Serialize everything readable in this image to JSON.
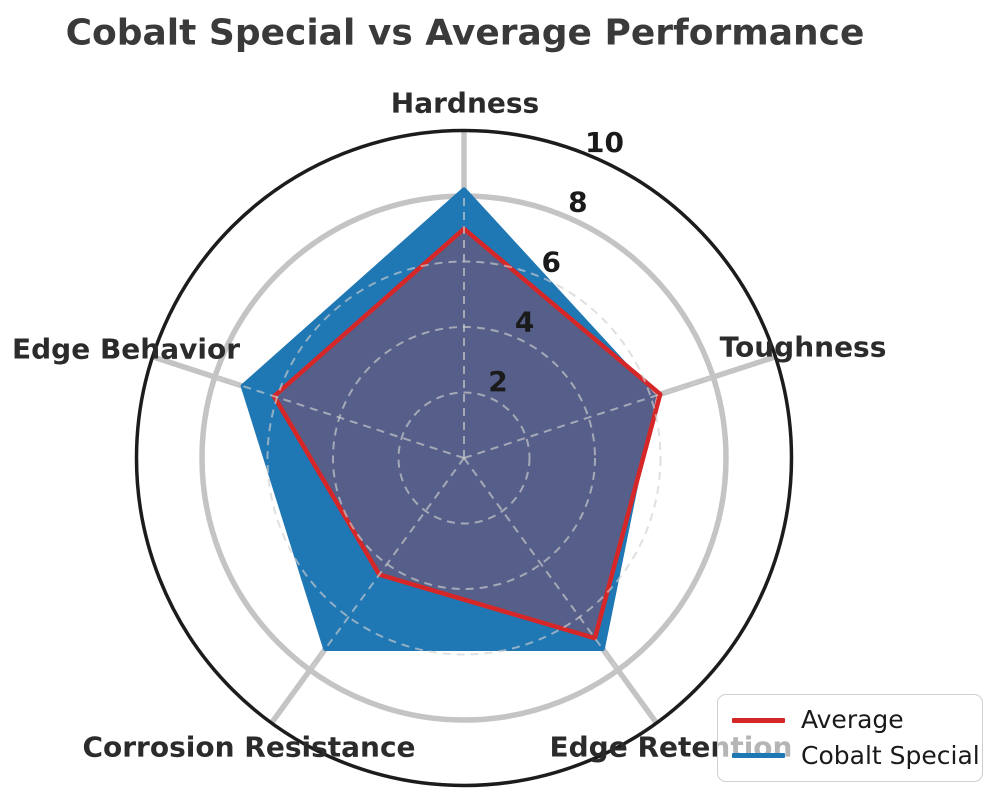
{
  "chart_data": {
    "type": "radar",
    "title": "Cobalt Special vs Average Performance",
    "categories": [
      "Hardness",
      "Toughness",
      "Edge Retention",
      "Corrosion Resistance",
      "Edge Behavior"
    ],
    "series": [
      {
        "name": "Average",
        "color": "#d62728",
        "fill_opacity": 0.3,
        "line_width": 4.5,
        "values": [
          7.0,
          6.3,
          6.8,
          4.4,
          6.1
        ]
      },
      {
        "name": "Cobalt Special",
        "color": "#1f77b4",
        "fill_opacity": 1.0,
        "line_width": 4.5,
        "values": [
          8.2,
          6.1,
          7.2,
          7.2,
          7.1
        ]
      }
    ],
    "rticks": [
      2,
      4,
      6,
      8,
      10
    ],
    "rmax": 10,
    "solid_ring_at": 8,
    "rlabel_angle_deg": 66,
    "legend_position": "lower right",
    "grid": {
      "spoke_color": "#c4c4c4",
      "dash_color": "#cfcfcf",
      "dash_opacity": 0.65,
      "outline_color": "#1c1c1c"
    }
  }
}
